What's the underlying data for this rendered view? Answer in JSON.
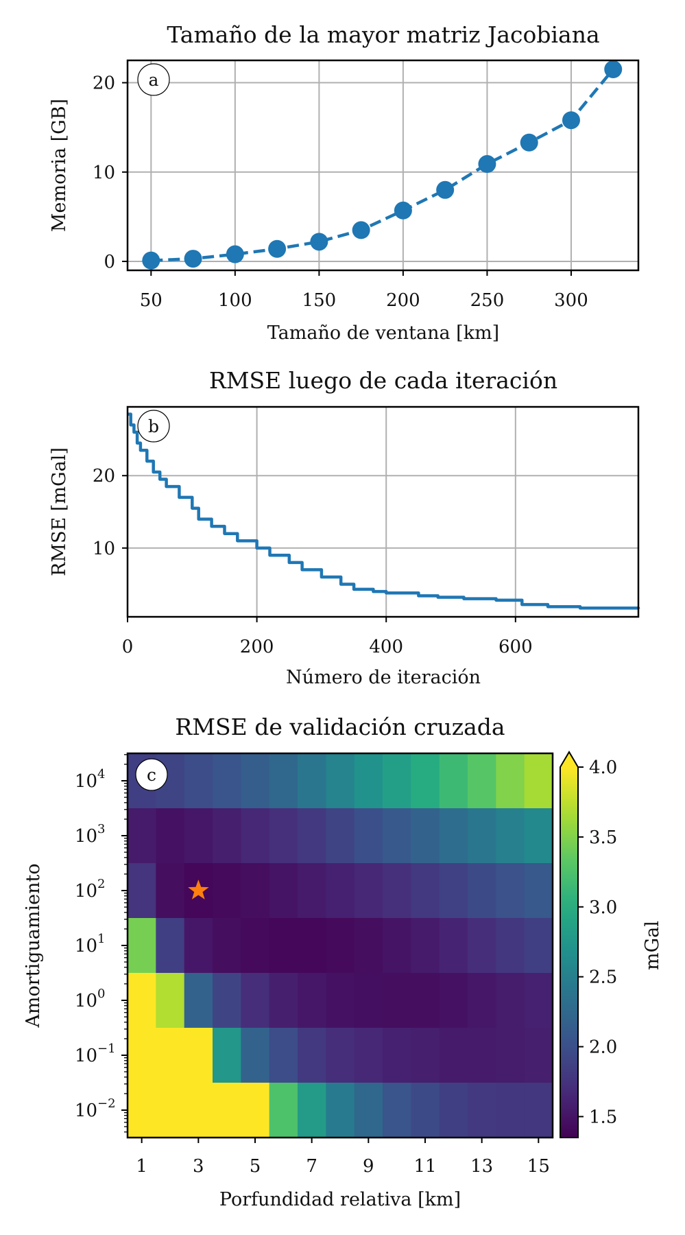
{
  "chart_data": [
    {
      "type": "line",
      "panel": "a",
      "title": "Tamaño de la mayor matriz Jacobiana",
      "xlabel": "Tamaño de ventana [km]",
      "ylabel": "Memoria [GB]",
      "x": [
        50,
        75,
        100,
        125,
        150,
        175,
        200,
        225,
        250,
        275,
        300,
        325
      ],
      "y": [
        0.1,
        0.3,
        0.8,
        1.4,
        2.2,
        3.5,
        5.7,
        8.0,
        10.9,
        13.3,
        15.8,
        21.5
      ],
      "xlim": [
        36,
        340
      ],
      "ylim": [
        -1,
        22.5
      ],
      "xticks": [
        "50",
        "100",
        "150",
        "200",
        "250",
        "300"
      ],
      "yticks": [
        "0",
        "10",
        "20"
      ],
      "line_style": "dashed",
      "markers": true,
      "grid": true,
      "color": "#1f77b4"
    },
    {
      "type": "line",
      "panel": "b",
      "title": "RMSE luego de cada iteración",
      "xlabel": "Número de iteración",
      "ylabel": "RMSE [mGal]",
      "x": [
        0,
        5,
        10,
        15,
        20,
        30,
        40,
        50,
        60,
        80,
        100,
        110,
        130,
        150,
        170,
        200,
        220,
        250,
        270,
        300,
        330,
        350,
        380,
        400,
        450,
        480,
        520,
        570,
        610,
        650,
        700,
        790
      ],
      "y": [
        28.5,
        27.0,
        26.0,
        24.5,
        23.5,
        22.0,
        20.5,
        19.5,
        18.5,
        17.0,
        15.5,
        14.0,
        13.0,
        12.0,
        11.0,
        10.0,
        9.0,
        8.0,
        7.0,
        6.0,
        5.0,
        4.3,
        4.0,
        3.8,
        3.4,
        3.2,
        3.0,
        2.8,
        2.2,
        1.9,
        1.7,
        1.6
      ],
      "xlim": [
        0,
        790
      ],
      "ylim": [
        0.5,
        29.5
      ],
      "xticks": [
        "0",
        "200",
        "400",
        "600"
      ],
      "yticks": [
        "10",
        "20"
      ],
      "grid": true,
      "color": "#1f77b4"
    },
    {
      "type": "heatmap",
      "panel": "c",
      "title": "RMSE de validación cruzada",
      "xlabel": "Porfundidad relativa [km]",
      "ylabel": "Amortiguamiento",
      "colorbar_label": "mGal",
      "colormap": "viridis",
      "vmin": 1.35,
      "vmax": 4.0,
      "colorbar_ticks": [
        "1.5",
        "2.0",
        "2.5",
        "3.0",
        "3.5",
        "4.0"
      ],
      "colorbar_extend": "max",
      "x": [
        1,
        2,
        3,
        4,
        5,
        6,
        7,
        8,
        9,
        10,
        11,
        12,
        13,
        14,
        15
      ],
      "xticks": [
        "1",
        "3",
        "5",
        "7",
        "9",
        "11",
        "13",
        "15"
      ],
      "y_exponents": [
        4,
        3,
        2,
        1,
        0,
        -1,
        -2
      ],
      "ytick_base": "10",
      "yticks": [
        "4",
        "3",
        "2",
        "1",
        "0",
        "−1",
        "−2"
      ],
      "values": [
        [
          1.85,
          1.9,
          1.98,
          2.05,
          2.15,
          2.25,
          2.4,
          2.55,
          2.7,
          2.85,
          3.0,
          3.15,
          3.3,
          3.5,
          3.65
        ],
        [
          1.55,
          1.48,
          1.52,
          1.58,
          1.65,
          1.72,
          1.8,
          1.9,
          2.0,
          2.1,
          2.2,
          2.3,
          2.4,
          2.5,
          2.6
        ],
        [
          1.75,
          1.45,
          1.4,
          1.42,
          1.45,
          1.5,
          1.55,
          1.6,
          1.65,
          1.72,
          1.8,
          1.87,
          1.95,
          2.02,
          2.1
        ],
        [
          3.45,
          1.85,
          1.52,
          1.45,
          1.42,
          1.4,
          1.4,
          1.42,
          1.45,
          1.5,
          1.55,
          1.62,
          1.7,
          1.78,
          1.85
        ],
        [
          4.1,
          3.7,
          2.2,
          1.9,
          1.7,
          1.58,
          1.52,
          1.48,
          1.46,
          1.45,
          1.45,
          1.48,
          1.52,
          1.56,
          1.6
        ],
        [
          4.1,
          4.1,
          4.1,
          2.75,
          2.2,
          1.98,
          1.8,
          1.7,
          1.65,
          1.6,
          1.58,
          1.55,
          1.55,
          1.56,
          1.58
        ],
        [
          4.1,
          4.1,
          4.1,
          4.1,
          4.1,
          3.25,
          2.8,
          2.45,
          2.25,
          2.05,
          1.95,
          1.85,
          1.8,
          1.78,
          1.78
        ]
      ],
      "marker": {
        "x": 3,
        "y_exponent": 2,
        "shape": "star",
        "color": "#ff7f0e"
      }
    }
  ],
  "panel_labels": [
    "a",
    "b",
    "c"
  ]
}
